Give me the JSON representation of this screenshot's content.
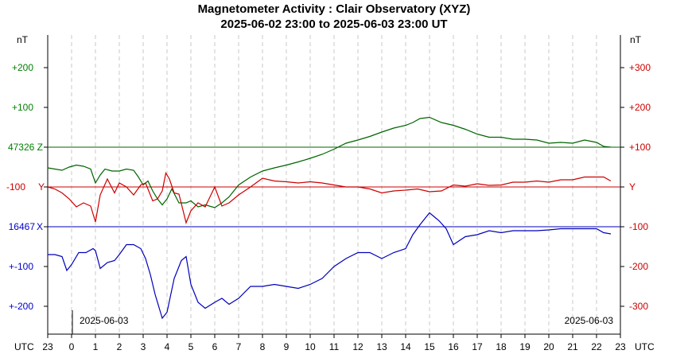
{
  "chart_data": {
    "type": "line",
    "title": "Magnetometer Activity : Clair Observatory (XYZ)",
    "subtitle": "2025-06-02 23:00 to 2025-06-03 23:00 UT",
    "left_unit": "nT",
    "right_unit": "nT",
    "x_unit": "UTC",
    "x_ticks": [
      "23",
      "0",
      "1",
      "2",
      "3",
      "4",
      "5",
      "6",
      "7",
      "8",
      "9",
      "10",
      "11",
      "12",
      "13",
      "14",
      "15",
      "16",
      "17",
      "18",
      "19",
      "20",
      "21",
      "22",
      "23"
    ],
    "date_left": "2025-06-03",
    "date_right": "2025-06-03",
    "left_ticks": [
      "+200",
      "+100",
      "47326 Z",
      "-100",
      "Y",
      "16467",
      "X",
      "+-100",
      "+-200"
    ],
    "right_ticks": [
      "+300",
      "+200",
      "+100",
      "Y",
      "-100",
      "-200",
      "-300"
    ],
    "grid": "vertical dashed at each hour",
    "colors": {
      "Z": "#006400",
      "Y": "#cc0000",
      "X": "#0000bb",
      "tick_z": "#008000",
      "tick_y": "#cc0000",
      "tick_x": "#0000cc"
    },
    "series": [
      {
        "name": "Z",
        "baseline": 47326,
        "x": [
          23.0,
          23.3,
          23.6,
          23.9,
          0.2,
          0.5,
          0.8,
          1.0,
          1.2,
          1.4,
          1.7,
          2.0,
          2.3,
          2.6,
          2.8,
          3.0,
          3.2,
          3.4,
          3.6,
          3.8,
          4.0,
          4.2,
          4.5,
          4.8,
          5.0,
          5.3,
          5.6,
          6.0,
          6.3,
          6.6,
          7.0,
          7.5,
          8.0,
          8.5,
          9.0,
          9.5,
          10.0,
          10.5,
          11.0,
          11.5,
          12.0,
          12.5,
          13.0,
          13.5,
          14.0,
          14.3,
          14.6,
          15.0,
          15.5,
          16.0,
          16.5,
          17.0,
          17.5,
          18.0,
          18.5,
          19.0,
          19.5,
          20.0,
          20.5,
          21.0,
          21.5,
          22.0,
          22.3,
          22.6
        ],
        "values": [
          -52,
          -55,
          -58,
          -50,
          -45,
          -48,
          -55,
          -90,
          -70,
          -55,
          -60,
          -60,
          -55,
          -58,
          -75,
          -95,
          -85,
          -110,
          -130,
          -145,
          -130,
          -105,
          -140,
          -140,
          -135,
          -150,
          -145,
          -152,
          -140,
          -125,
          -95,
          -75,
          -60,
          -52,
          -45,
          -37,
          -28,
          -18,
          -5,
          10,
          18,
          27,
          38,
          48,
          55,
          62,
          72,
          75,
          62,
          55,
          45,
          33,
          25,
          25,
          20,
          20,
          18,
          10,
          12,
          10,
          18,
          12,
          2,
          0
        ]
      },
      {
        "name": "Y",
        "x": [
          23.0,
          23.3,
          23.6,
          23.9,
          0.2,
          0.5,
          0.8,
          1.0,
          1.2,
          1.5,
          1.8,
          2.0,
          2.3,
          2.6,
          2.9,
          3.1,
          3.4,
          3.6,
          3.8,
          3.95,
          4.1,
          4.3,
          4.5,
          4.8,
          5.0,
          5.3,
          5.6,
          6.0,
          6.3,
          6.6,
          7.0,
          7.5,
          8.0,
          8.5,
          9.0,
          9.5,
          10.0,
          10.5,
          11.0,
          11.5,
          12.0,
          12.5,
          13.0,
          13.5,
          14.0,
          14.5,
          15.0,
          15.5,
          16.0,
          16.5,
          17.0,
          17.5,
          18.0,
          18.5,
          19.0,
          19.5,
          20.0,
          20.5,
          21.0,
          21.5,
          22.0,
          22.3,
          22.6
        ],
        "values": [
          -100,
          -105,
          -115,
          -130,
          -150,
          -140,
          -148,
          -188,
          -120,
          -80,
          -115,
          -90,
          -100,
          -120,
          -95,
          -90,
          -135,
          -130,
          -110,
          -65,
          -80,
          -115,
          -118,
          -190,
          -160,
          -140,
          -150,
          -100,
          -148,
          -140,
          -120,
          -100,
          -78,
          -85,
          -87,
          -90,
          -87,
          -90,
          -95,
          -100,
          -100,
          -105,
          -115,
          -110,
          -108,
          -105,
          -112,
          -110,
          -95,
          -98,
          -92,
          -96,
          -95,
          -88,
          -88,
          -85,
          -88,
          -82,
          -82,
          -75,
          -75,
          -75,
          -85
        ]
      },
      {
        "name": "X",
        "baseline": 16467,
        "x": [
          23.0,
          23.3,
          23.6,
          23.8,
          24.0,
          0.3,
          0.6,
          0.9,
          1.0,
          1.2,
          1.5,
          1.8,
          2.0,
          2.3,
          2.6,
          2.9,
          3.1,
          3.3,
          3.5,
          3.7,
          3.8,
          4.0,
          4.3,
          4.6,
          4.8,
          5.0,
          5.3,
          5.6,
          6.0,
          6.3,
          6.6,
          7.0,
          7.5,
          8.0,
          8.5,
          9.0,
          9.5,
          10.0,
          10.5,
          11.0,
          11.5,
          12.0,
          12.5,
          13.0,
          13.5,
          14.0,
          14.3,
          14.6,
          15.0,
          15.2,
          15.4,
          15.7,
          16.0,
          16.5,
          17.0,
          17.5,
          18.0,
          18.5,
          19.0,
          19.5,
          20.0,
          20.5,
          21.0,
          21.5,
          22.0,
          22.3,
          22.6
        ],
        "values": [
          -70,
          -70,
          -75,
          -110,
          -95,
          -65,
          -65,
          -55,
          -60,
          -105,
          -90,
          -85,
          -70,
          -45,
          -45,
          -55,
          -80,
          -120,
          -170,
          -210,
          -230,
          -215,
          -130,
          -85,
          -75,
          -145,
          -190,
          -205,
          -190,
          -180,
          -195,
          -180,
          -150,
          -150,
          -145,
          -150,
          -155,
          -145,
          -130,
          -100,
          -80,
          -65,
          -65,
          -80,
          -65,
          -55,
          -20,
          5,
          35,
          25,
          15,
          -5,
          -45,
          -25,
          -20,
          -10,
          -15,
          -10,
          -10,
          -10,
          -8,
          -5,
          -5,
          -5,
          -5,
          -15,
          -18
        ]
      }
    ]
  }
}
